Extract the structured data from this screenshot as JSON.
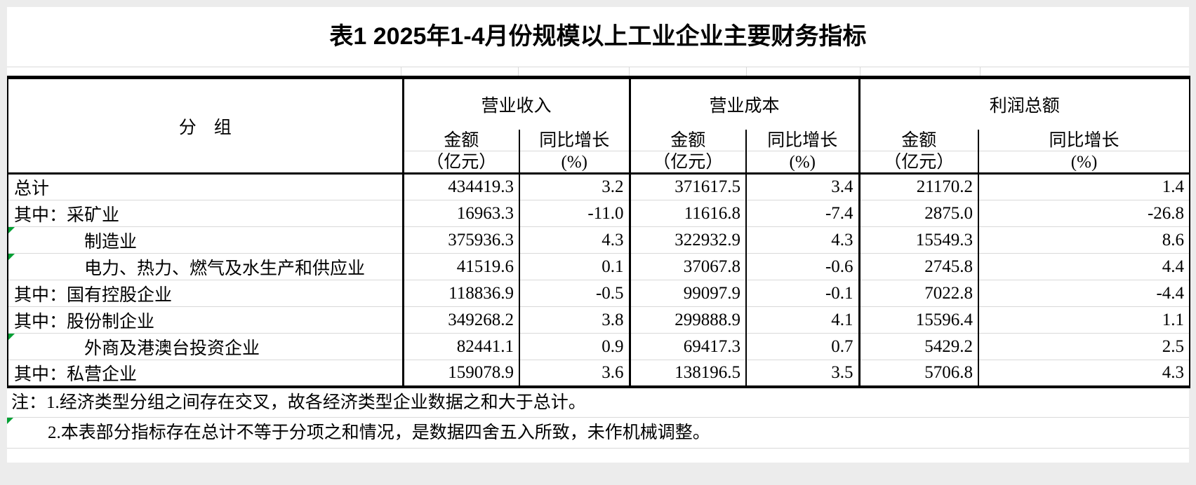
{
  "title": "表1 2025年1-4月份规模以上工业企业主要财务指标",
  "table": {
    "group_col_header": "分　组",
    "col_groups": [
      {
        "label": "营业收入"
      },
      {
        "label": "营业成本"
      },
      {
        "label": "利润总额"
      }
    ],
    "sub_header": {
      "amount_top": "金额",
      "amount_bottom": "（亿元）",
      "growth_top": "同比增长",
      "growth_bottom": "(%)"
    },
    "rows": [
      {
        "label": "总计",
        "indent": 0,
        "flag": false,
        "values": [
          "434419.3",
          "3.2",
          "371617.5",
          "3.4",
          "21170.2",
          "1.4"
        ]
      },
      {
        "label": "其中：采矿业",
        "indent": 0,
        "flag": false,
        "values": [
          "16963.3",
          "-11.0",
          "11616.8",
          "-7.4",
          "2875.0",
          "-26.8"
        ]
      },
      {
        "label": "制造业",
        "indent": 1,
        "flag": true,
        "values": [
          "375936.3",
          "4.3",
          "322932.9",
          "4.3",
          "15549.3",
          "8.6"
        ]
      },
      {
        "label": "电力、热力、燃气及水生产和供应业",
        "indent": 1,
        "flag": true,
        "values": [
          "41519.6",
          "0.1",
          "37067.8",
          "-0.6",
          "2745.8",
          "4.4"
        ]
      },
      {
        "label": "其中：国有控股企业",
        "indent": 0,
        "flag": false,
        "values": [
          "118836.9",
          "-0.5",
          "99097.9",
          "-0.1",
          "7022.8",
          "-4.4"
        ]
      },
      {
        "label": "其中：股份制企业",
        "indent": 0,
        "flag": false,
        "values": [
          "349268.2",
          "3.8",
          "299888.9",
          "4.1",
          "15596.4",
          "1.1"
        ]
      },
      {
        "label": "外商及港澳台投资企业",
        "indent": 1,
        "flag": true,
        "values": [
          "82441.1",
          "0.9",
          "69417.3",
          "0.7",
          "5429.2",
          "2.5"
        ]
      },
      {
        "label": "其中：私营企业",
        "indent": 0,
        "flag": false,
        "values": [
          "159078.9",
          "3.6",
          "138196.5",
          "3.5",
          "5706.8",
          "4.3"
        ]
      }
    ]
  },
  "notes": {
    "line1": "注：1.经济类型分组之间存在交叉，故各经济类型企业数据之和大于总计。",
    "line2": "2.本表部分指标存在总计不等于分项之和情况，是数据四舍五入所致，未作机械调整。"
  },
  "colors": {
    "flag_green": "#00A033",
    "gridline_gray": "#D9D9D9",
    "border_black": "#000000",
    "page_margin_gray": "#ECECEC"
  }
}
